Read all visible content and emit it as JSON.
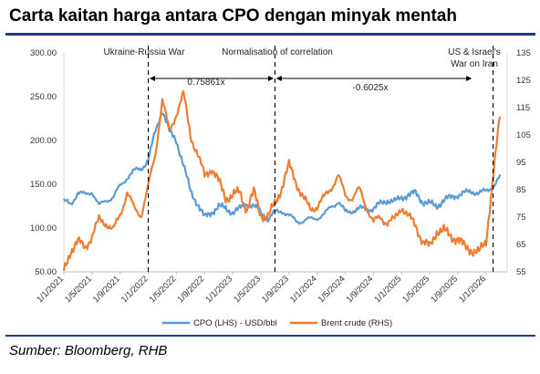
{
  "header": {
    "title": "Carta kaitan harga antara CPO dengan minyak mentah"
  },
  "footer": {
    "source": "Sumber: Bloomberg,  RHB"
  },
  "colors": {
    "rule": "#1f3a8a",
    "cpo": "#5b9bd5",
    "brent": "#ed7d31"
  },
  "chart_data": {
    "type": "line",
    "title": "",
    "x_tick_labels": [
      "1/1/2021",
      "1/5/2021",
      "1/9/2021",
      "1/1/2022",
      "1/5/2022",
      "1/9/2022",
      "1/1/2023",
      "1/5/2023",
      "1/9/2023",
      "1/1/2024",
      "1/5/2024",
      "1/9/2024",
      "1/1/2025",
      "1/5/2025",
      "1/9/2025",
      "1/1/2026"
    ],
    "y_left": {
      "ticks": [
        "50.00",
        "100.00",
        "150.00",
        "200.00",
        "250.00",
        "300.00"
      ],
      "lim": [
        50,
        300
      ]
    },
    "y_right": {
      "ticks": [
        "55",
        "65",
        "75",
        "85",
        "95",
        "105",
        "115",
        "125",
        "135"
      ],
      "lim": [
        55,
        135
      ]
    },
    "grid": false,
    "legend_position": "bottom",
    "series": [
      {
        "name": "CPO (LHS) - USD/bbl",
        "axis": "left",
        "x": [
          "2021-01",
          "2021-02",
          "2021-03",
          "2021-04",
          "2021-05",
          "2021-06",
          "2021-07",
          "2021-08",
          "2021-09",
          "2021-10",
          "2021-11",
          "2021-12",
          "2022-01",
          "2022-02",
          "2022-03",
          "2022-04",
          "2022-05",
          "2022-06",
          "2022-07",
          "2022-08",
          "2022-09",
          "2022-10",
          "2022-11",
          "2022-12",
          "2023-01",
          "2023-02",
          "2023-03",
          "2023-04",
          "2023-05",
          "2023-06",
          "2023-07",
          "2023-08",
          "2023-09",
          "2023-10",
          "2023-11",
          "2023-12",
          "2024-01",
          "2024-02",
          "2024-03",
          "2024-04",
          "2024-05",
          "2024-06",
          "2024-07",
          "2024-08",
          "2024-09",
          "2024-10",
          "2024-11",
          "2024-12",
          "2025-01",
          "2025-02",
          "2025-03",
          "2025-04",
          "2025-05",
          "2025-06",
          "2025-07",
          "2025-08",
          "2025-09",
          "2025-10",
          "2025-11",
          "2025-12",
          "2026-01",
          "2026-02",
          "2026-03"
        ],
        "values": [
          130,
          128,
          140,
          138,
          142,
          125,
          132,
          135,
          148,
          158,
          165,
          168,
          178,
          210,
          235,
          210,
          200,
          172,
          142,
          128,
          112,
          118,
          125,
          122,
          118,
          122,
          128,
          125,
          118,
          110,
          118,
          120,
          114,
          108,
          108,
          110,
          112,
          115,
          125,
          130,
          118,
          120,
          122,
          122,
          122,
          128,
          132,
          130,
          135,
          138,
          140,
          130,
          128,
          125,
          132,
          135,
          138,
          140,
          142,
          140,
          142,
          148,
          158
        ]
      },
      {
        "name": "Brent crude (RHS)",
        "axis": "right",
        "x": [
          "2021-01",
          "2021-02",
          "2021-03",
          "2021-04",
          "2021-05",
          "2021-06",
          "2021-07",
          "2021-08",
          "2021-09",
          "2021-10",
          "2021-11",
          "2021-12",
          "2022-01",
          "2022-02",
          "2022-03",
          "2022-04",
          "2022-05",
          "2022-06",
          "2022-07",
          "2022-08",
          "2022-09",
          "2022-10",
          "2022-11",
          "2022-12",
          "2023-01",
          "2023-02",
          "2023-03",
          "2023-04",
          "2023-05",
          "2023-06",
          "2023-07",
          "2023-08",
          "2023-09",
          "2023-10",
          "2023-11",
          "2023-12",
          "2024-01",
          "2024-02",
          "2024-03",
          "2024-04",
          "2024-05",
          "2024-06",
          "2024-07",
          "2024-08",
          "2024-09",
          "2024-10",
          "2024-11",
          "2024-12",
          "2025-01",
          "2025-02",
          "2025-03",
          "2025-04",
          "2025-05",
          "2025-06",
          "2025-07",
          "2025-08",
          "2025-09",
          "2025-10",
          "2025-11",
          "2025-12",
          "2026-01",
          "2026-02",
          "2026-03"
        ],
        "values": [
          55,
          63,
          66,
          64,
          68,
          74,
          73,
          70,
          76,
          84,
          78,
          76,
          86,
          98,
          118,
          106,
          113,
          120,
          105,
          98,
          90,
          93,
          88,
          82,
          83,
          84,
          78,
          84,
          76,
          75,
          80,
          86,
          94,
          88,
          82,
          78,
          79,
          82,
          86,
          90,
          83,
          82,
          85,
          79,
          73,
          75,
          73,
          74,
          79,
          75,
          72,
          66,
          64,
          70,
          70,
          68,
          67,
          64,
          63,
          62,
          66,
          90,
          112
        ]
      }
    ],
    "annotations": {
      "event_labels": [
        "Ukraine-Russia War",
        "Normalisation of correlation",
        "US & Israel's",
        "War on Iran"
      ],
      "correlation_labels": [
        "0.75861x",
        "-0.6025x"
      ],
      "dashed_verticals_at": [
        "2022-01",
        "2023-07",
        "2026-02"
      ]
    }
  }
}
